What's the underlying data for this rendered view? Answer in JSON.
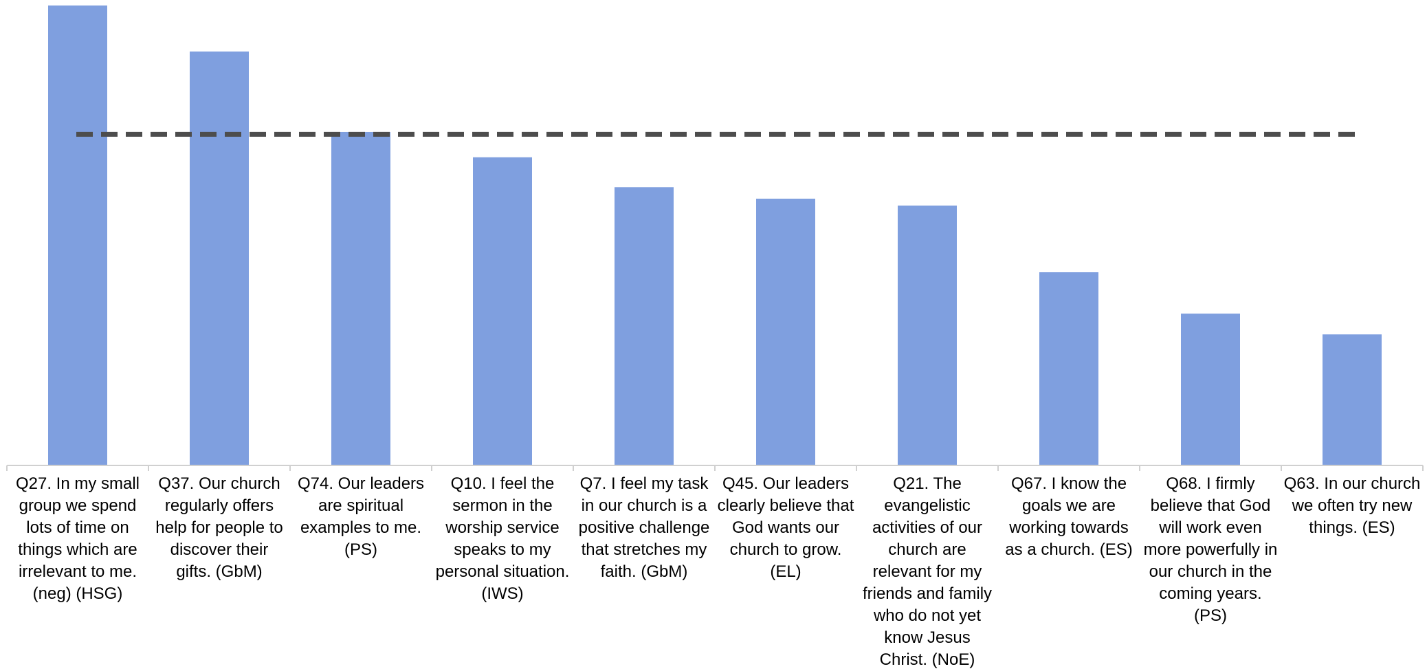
{
  "chart_data": {
    "type": "bar",
    "categories": [
      "Q27. In my small group we spend lots of time on things which are irrelevant to me. (neg) (HSG)",
      "Q37. Our church regularly offers help for people to discover their gifts. (GbM)",
      "Q74. Our leaders are spiritual examples to me. (PS)",
      "Q10. I feel the sermon in the worship service speaks to my personal situation. (IWS)",
      "Q7. I feel my task in our church is a positive challenge that stretches my faith. (GbM)",
      "Q45. Our leaders clearly believe that God wants our church to grow. (EL)",
      "Q21. The evangelistic activities of our church are relevant for my friends and family who do not yet know Jesus Christ. (NoE)",
      "Q67. I know the goals we are working towards as a church. (ES)",
      "Q68. I firmly believe that God will work even more powerfully in our church in the coming years. (PS)",
      "Q63. In our church we often try new things. (ES)"
    ],
    "values": [
      100,
      90,
      72.5,
      67,
      60.5,
      58,
      56.5,
      42,
      33,
      28.5
    ],
    "reference_line": {
      "value": 72,
      "style": "dashed",
      "color": "#4d4d4d"
    },
    "bar_color": "#7f9fdf",
    "axis_color": "#d0d0d0",
    "ylim": [
      0,
      100
    ],
    "grid": false,
    "legend": "none",
    "title": "",
    "xlabel": "",
    "ylabel": ""
  }
}
